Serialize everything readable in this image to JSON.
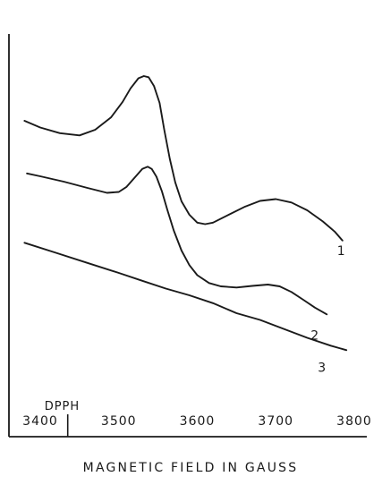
{
  "chart_data": {
    "type": "line",
    "title": "",
    "xlabel": "MAGNETIC FIELD IN GAUSS",
    "ylabel": "",
    "xlim": [
      3360,
      3820
    ],
    "x_ticks": [
      "3400",
      "3500",
      "3600",
      "3700",
      "3800"
    ],
    "grid": false,
    "marker": {
      "label": "DPPH",
      "x": 3435
    },
    "series": [
      {
        "name": "1",
        "x": [
          3380,
          3400,
          3425,
          3450,
          3470,
          3490,
          3505,
          3515,
          3525,
          3532,
          3538,
          3545,
          3552,
          3558,
          3565,
          3572,
          3580,
          3590,
          3600,
          3610,
          3620,
          3640,
          3660,
          3680,
          3700,
          3720,
          3740,
          3760,
          3775,
          3785
        ],
        "y": [
          0.66,
          0.63,
          0.605,
          0.595,
          0.62,
          0.675,
          0.745,
          0.805,
          0.85,
          0.86,
          0.855,
          0.815,
          0.74,
          0.62,
          0.49,
          0.385,
          0.3,
          0.24,
          0.205,
          0.198,
          0.205,
          0.24,
          0.275,
          0.302,
          0.31,
          0.295,
          0.26,
          0.21,
          0.165,
          0.125
        ]
      },
      {
        "name": "2",
        "x": [
          3383,
          3400,
          3430,
          3460,
          3485,
          3500,
          3510,
          3520,
          3530,
          3537,
          3542,
          3548,
          3555,
          3562,
          3570,
          3580,
          3590,
          3600,
          3615,
          3630,
          3650,
          3670,
          3690,
          3705,
          3720,
          3735,
          3750,
          3765
        ],
        "y": [
          0.425,
          0.412,
          0.388,
          0.36,
          0.338,
          0.342,
          0.365,
          0.405,
          0.445,
          0.455,
          0.445,
          0.41,
          0.345,
          0.26,
          0.17,
          0.08,
          0.015,
          -0.03,
          -0.065,
          -0.08,
          -0.085,
          -0.078,
          -0.072,
          -0.08,
          -0.105,
          -0.14,
          -0.175,
          -0.205
        ]
      },
      {
        "name": "3",
        "x": [
          3380,
          3420,
          3460,
          3500,
          3530,
          3560,
          3590,
          3620,
          3650,
          3680,
          3710,
          3740,
          3770,
          3790
        ],
        "y": [
          0.115,
          0.07,
          0.025,
          -0.02,
          -0.055,
          -0.09,
          -0.12,
          -0.155,
          -0.2,
          -0.23,
          -0.27,
          -0.31,
          -0.345,
          -0.365
        ]
      }
    ]
  }
}
